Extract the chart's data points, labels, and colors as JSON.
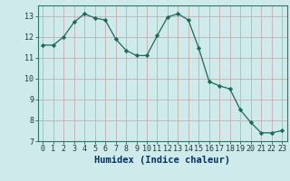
{
  "xlabel": "Humidex (Indice chaleur)",
  "x": [
    0,
    1,
    2,
    3,
    4,
    5,
    6,
    7,
    8,
    9,
    10,
    11,
    12,
    13,
    14,
    15,
    16,
    17,
    18,
    19,
    20,
    21,
    22,
    23
  ],
  "y": [
    11.6,
    11.6,
    12.0,
    12.7,
    13.1,
    12.9,
    12.8,
    11.9,
    11.35,
    11.1,
    11.1,
    12.05,
    12.95,
    13.1,
    12.8,
    11.45,
    9.85,
    9.65,
    9.5,
    8.5,
    7.9,
    7.4,
    7.4,
    7.5
  ],
  "line_color": "#1a6b5a",
  "marker": "D",
  "marker_size": 2.2,
  "bg_color": "#ceeaea",
  "grid_color": "#c8a0a0",
  "xlim": [
    -0.5,
    23.5
  ],
  "ylim": [
    7,
    13.5
  ],
  "yticks": [
    7,
    8,
    9,
    10,
    11,
    12,
    13
  ],
  "xticks": [
    0,
    1,
    2,
    3,
    4,
    5,
    6,
    7,
    8,
    9,
    10,
    11,
    12,
    13,
    14,
    15,
    16,
    17,
    18,
    19,
    20,
    21,
    22,
    23
  ],
  "xlabel_fontsize": 7.5,
  "tick_fontsize": 6.0
}
